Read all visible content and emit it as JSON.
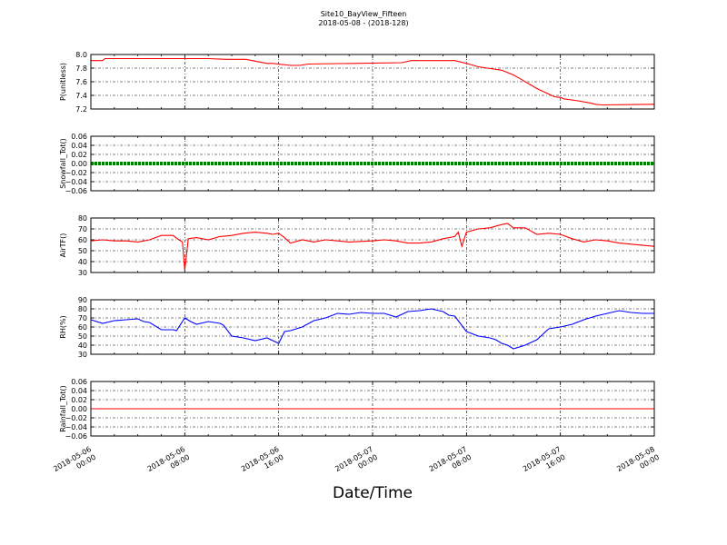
{
  "figure": {
    "title": "Site10_BayView_Fifteen",
    "subtitle": "2018-05-08 - (2018-128)",
    "xlabel": "Date/Time"
  },
  "chart_data": [
    {
      "type": "line",
      "ylabel": "P(unitless)",
      "ylim": [
        7.2,
        8.0
      ],
      "yticks": [
        "8.0",
        "7.8",
        "7.6",
        "7.4",
        "7.2"
      ],
      "ytick_values": [
        8.0,
        7.8,
        7.6,
        7.4,
        7.2
      ],
      "xticks": [
        "2018-05-06 00:00",
        "2018-05-06 08:00",
        "2018-05-06 16:00",
        "2018-05-07 00:00",
        "2018-05-07 08:00",
        "2018-05-07 16:00",
        "2018-05-08 00:00"
      ],
      "xlim_hours": [
        0,
        48
      ],
      "grid": true,
      "color": "#ff0000",
      "series": [
        {
          "x": [
            0,
            1,
            1.2,
            4,
            8,
            10,
            11.5,
            13.2,
            15,
            15.5,
            17,
            17.8,
            18.5,
            26.5,
            27,
            27.3,
            31,
            32.2,
            33,
            33.8,
            35,
            36,
            36.5,
            38,
            39.5,
            40,
            40.3,
            41.5,
            42.5,
            43,
            43.5,
            48
          ],
          "y": [
            7.91,
            7.91,
            7.94,
            7.94,
            7.94,
            7.94,
            7.93,
            7.93,
            7.87,
            7.87,
            7.84,
            7.84,
            7.86,
            7.88,
            7.9,
            7.91,
            7.91,
            7.86,
            7.82,
            7.8,
            7.77,
            7.7,
            7.65,
            7.5,
            7.38,
            7.37,
            7.35,
            7.32,
            7.29,
            7.27,
            7.26,
            7.27
          ]
        }
      ]
    },
    {
      "type": "line",
      "ylabel": "Snowfall_Tot()",
      "ylim": [
        -0.06,
        0.06
      ],
      "yticks": [
        "0.06",
        "0.04",
        "0.02",
        "0.00",
        "−0.02",
        "−0.04",
        "−0.06"
      ],
      "ytick_values": [
        0.06,
        0.04,
        0.02,
        0.0,
        -0.02,
        -0.04,
        -0.06
      ],
      "xlim_hours": [
        0,
        48
      ],
      "grid": true,
      "color": "#008000",
      "series": [
        {
          "x": [
            0,
            48
          ],
          "y": [
            0,
            0
          ]
        }
      ]
    },
    {
      "type": "line",
      "ylabel": "AirTF()",
      "ylim": [
        30,
        80
      ],
      "yticks": [
        "80",
        "70",
        "60",
        "50",
        "40",
        "30"
      ],
      "ytick_values": [
        80,
        70,
        60,
        50,
        40,
        30
      ],
      "xlim_hours": [
        0,
        48
      ],
      "grid": true,
      "color": "#ff0000",
      "series": [
        {
          "x": [
            0,
            1,
            2,
            3,
            4,
            5,
            6,
            7,
            7.5,
            7.8,
            8,
            8.3,
            9,
            10,
            11,
            12,
            13,
            14,
            15,
            15.5,
            16,
            16.5,
            17,
            18,
            19,
            20,
            22,
            24,
            25,
            26,
            27,
            28,
            29,
            30,
            31,
            31.3,
            31.6,
            32,
            33,
            34,
            35,
            35.5,
            36,
            37,
            38,
            39,
            40,
            41,
            42,
            43,
            44,
            45,
            46,
            48
          ],
          "y": [
            59,
            60,
            59,
            59,
            58,
            60,
            64,
            64,
            60,
            58,
            32,
            61,
            62,
            60,
            63,
            64,
            66,
            67,
            66,
            65,
            66,
            62,
            57,
            60,
            58,
            60,
            58,
            59,
            60,
            59,
            57,
            57,
            58,
            61,
            63,
            67,
            54,
            67,
            70,
            71,
            74,
            75,
            71,
            71,
            65,
            66,
            65,
            61,
            58,
            60,
            59,
            57,
            56,
            54
          ]
        }
      ]
    },
    {
      "type": "line",
      "ylabel": "RH(%)",
      "ylim": [
        30,
        90
      ],
      "yticks": [
        "90",
        "80",
        "70",
        "60",
        "50",
        "40",
        "30"
      ],
      "ytick_values": [
        90,
        80,
        70,
        60,
        50,
        40,
        30
      ],
      "xlim_hours": [
        0,
        48
      ],
      "grid": true,
      "color": "#0000ff",
      "series": [
        {
          "x": [
            0,
            1,
            2,
            3,
            4,
            4.5,
            5,
            6,
            7,
            7.3,
            8,
            8.5,
            9,
            10,
            11,
            11.3,
            12,
            13,
            14,
            15,
            16,
            16.5,
            17,
            18,
            19,
            20,
            21,
            22,
            23,
            24,
            25,
            26,
            27,
            28,
            29,
            30,
            30.5,
            31,
            32,
            33,
            34,
            34.5,
            35,
            35.5,
            36,
            37,
            38,
            39,
            40,
            41,
            42,
            43,
            44,
            45,
            46,
            47,
            48
          ],
          "y": [
            68,
            64,
            67,
            68,
            69,
            66,
            65,
            57,
            57,
            56,
            70,
            66,
            63,
            66,
            64,
            62,
            50,
            48,
            45,
            48,
            42,
            55,
            56,
            60,
            67,
            70,
            75,
            74,
            76,
            75,
            75,
            71,
            77,
            78,
            80,
            77,
            73,
            72,
            55,
            50,
            48,
            46,
            42,
            40,
            36,
            40,
            46,
            58,
            60,
            63,
            68,
            72,
            75,
            78,
            76,
            75,
            75
          ]
        }
      ]
    },
    {
      "type": "line",
      "ylabel": "Rainfall_Tot()",
      "ylim": [
        -0.06,
        0.06
      ],
      "yticks": [
        "0.06",
        "0.04",
        "0.02",
        "0.00",
        "−0.02",
        "−0.04",
        "−0.06"
      ],
      "ytick_values": [
        0.06,
        0.04,
        0.02,
        0.0,
        -0.02,
        -0.04,
        -0.06
      ],
      "xlim_hours": [
        0,
        48
      ],
      "grid": true,
      "color": "#ff0000",
      "series": [
        {
          "x": [
            0,
            48
          ],
          "y": [
            0,
            0
          ]
        }
      ]
    }
  ]
}
